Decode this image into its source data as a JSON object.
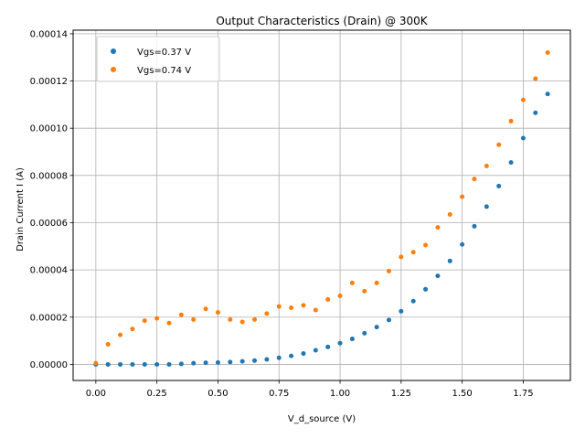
{
  "chart_data": {
    "type": "scatter",
    "title": "Output Characteristics (Drain) @ 300K",
    "xlabel": "V_d_source (V)",
    "ylabel": "Drain Current I (A)",
    "xlim": [
      -0.093,
      1.943
    ],
    "ylim": [
      -6.8e-06,
      0.0001415
    ],
    "xticks": [
      0.0,
      0.25,
      0.5,
      0.75,
      1.0,
      1.25,
      1.5,
      1.75
    ],
    "xtick_labels": [
      "0.00",
      "0.25",
      "0.50",
      "0.75",
      "1.00",
      "1.25",
      "1.50",
      "1.75"
    ],
    "yticks": [
      0,
      2e-05,
      4e-05,
      6e-05,
      8e-05,
      0.0001,
      0.00012,
      0.00014
    ],
    "ytick_labels": [
      "0.00000",
      "0.00002",
      "0.00004",
      "0.00006",
      "0.00008",
      "0.00010",
      "0.00012",
      "0.00014"
    ],
    "grid": true,
    "legend_position": "top-left",
    "series": [
      {
        "name": "Vgs=0.37 V",
        "color": "#1f77b4",
        "marker": "dot",
        "x": [
          0.0,
          0.05,
          0.1,
          0.15,
          0.2,
          0.25,
          0.3,
          0.35,
          0.4,
          0.45,
          0.5,
          0.55,
          0.6,
          0.65,
          0.7,
          0.75,
          0.8,
          0.85,
          0.9,
          0.95,
          1.0,
          1.05,
          1.1,
          1.15,
          1.2,
          1.25,
          1.3,
          1.35,
          1.4,
          1.45,
          1.5,
          1.55,
          1.6,
          1.65,
          1.7,
          1.75,
          1.8,
          1.85
        ],
        "y": [
          0.0,
          0.0,
          0.0,
          0.0,
          0.0,
          0.0,
          0.0,
          2e-07,
          5e-07,
          7e-07,
          8e-07,
          1e-06,
          1.3e-06,
          1.6e-06,
          2.1e-06,
          2.8e-06,
          3.6e-06,
          4.6e-06,
          6e-06,
          7.4e-06,
          9e-06,
          1.08e-05,
          1.32e-05,
          1.58e-05,
          1.88e-05,
          2.25e-05,
          2.68e-05,
          3.18e-05,
          3.75e-05,
          4.38e-05,
          5.08e-05,
          5.85e-05,
          6.68e-05,
          7.55e-05,
          8.55e-05,
          9.58e-05,
          0.0001065,
          0.0001145
        ]
      },
      {
        "name": "Vgs=0.74 V",
        "color": "#ff7f0e",
        "marker": "dot",
        "x": [
          0.0,
          0.05,
          0.1,
          0.15,
          0.2,
          0.25,
          0.3,
          0.35,
          0.4,
          0.45,
          0.5,
          0.55,
          0.6,
          0.65,
          0.7,
          0.75,
          0.8,
          0.85,
          0.9,
          0.95,
          1.0,
          1.05,
          1.1,
          1.15,
          1.2,
          1.25,
          1.3,
          1.35,
          1.4,
          1.45,
          1.5,
          1.55,
          1.6,
          1.65,
          1.7,
          1.75,
          1.8,
          1.85
        ],
        "y": [
          5e-07,
          8.5e-06,
          1.25e-05,
          1.5e-05,
          1.85e-05,
          1.95e-05,
          1.75e-05,
          2.1e-05,
          1.9e-05,
          2.35e-05,
          2.2e-05,
          1.9e-05,
          1.8e-05,
          1.9e-05,
          2.15e-05,
          2.45e-05,
          2.4e-05,
          2.5e-05,
          2.3e-05,
          2.75e-05,
          2.9e-05,
          3.45e-05,
          3.1e-05,
          3.45e-05,
          3.95e-05,
          4.55e-05,
          4.75e-05,
          5.05e-05,
          5.8e-05,
          6.35e-05,
          7.1e-05,
          7.85e-05,
          8.4e-05,
          9.3e-05,
          0.000103,
          0.000112,
          0.000121,
          0.000132
        ]
      }
    ]
  }
}
